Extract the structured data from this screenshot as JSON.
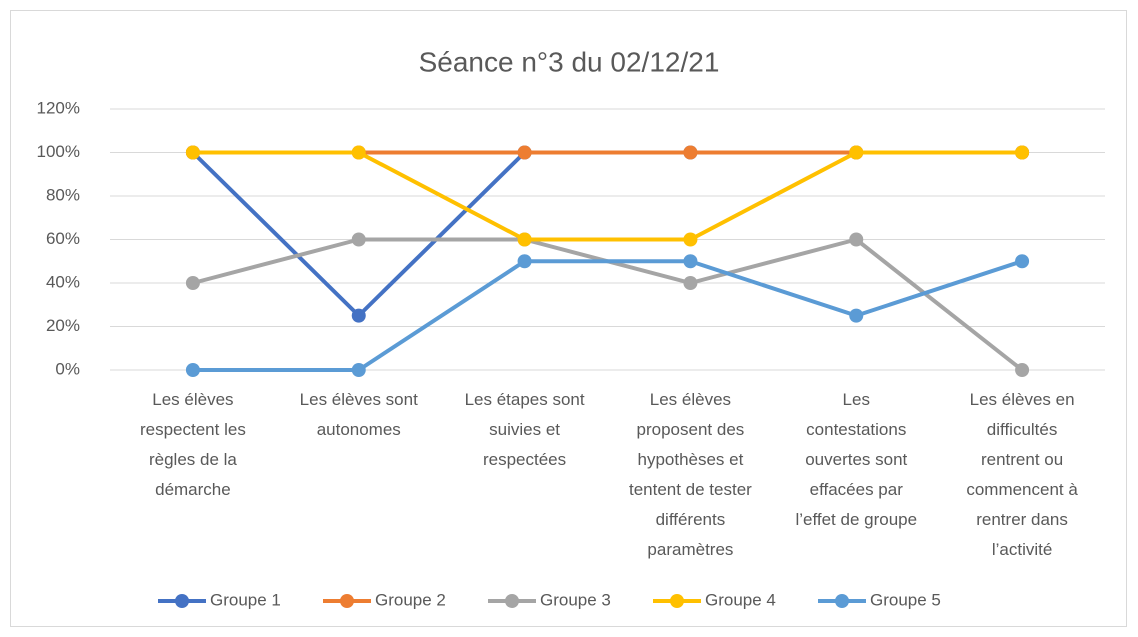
{
  "chart_data": {
    "type": "line",
    "title": "Séance n°3 du 02/12/21",
    "categories": [
      "Les élèves\nrespectent les\nrègles de la\ndémarche",
      "Les élèves sont\nautonomes",
      "Les étapes sont\nsuivies et\nrespectées",
      "Les élèves\nproposent des\nhypothèses et\ntentent de tester\ndifférents\nparamètres",
      "Les\ncontestations\nouvertes sont\neffacées par\nl’effet de groupe",
      "Les élèves en\ndifficultés\nrentrent ou\ncommencent à\nrentrer dans\nl’activité"
    ],
    "series": [
      {
        "name": "Groupe 1",
        "color": "#4472c4",
        "values": [
          100,
          25,
          100,
          100,
          100,
          100
        ]
      },
      {
        "name": "Groupe 2",
        "color": "#ed7d31",
        "values": [
          100,
          100,
          100,
          100,
          100,
          100
        ]
      },
      {
        "name": "Groupe 3",
        "color": "#a5a5a5",
        "values": [
          40,
          60,
          60,
          40,
          60,
          0
        ]
      },
      {
        "name": "Groupe 4",
        "color": "#ffc000",
        "values": [
          100,
          100,
          60,
          60,
          100,
          100
        ]
      },
      {
        "name": "Groupe 5",
        "color": "#5b9bd5",
        "values": [
          0,
          0,
          50,
          50,
          25,
          50
        ]
      }
    ],
    "ylim": [
      0,
      120
    ],
    "yticks": [
      {
        "value": 0,
        "label": "0%"
      },
      {
        "value": 20,
        "label": "20%"
      },
      {
        "value": 40,
        "label": "40%"
      },
      {
        "value": 60,
        "label": "60%"
      },
      {
        "value": 80,
        "label": "80%"
      },
      {
        "value": 100,
        "label": "100%"
      },
      {
        "value": 120,
        "label": "120%"
      }
    ],
    "grid": true,
    "legend": "bottom"
  }
}
